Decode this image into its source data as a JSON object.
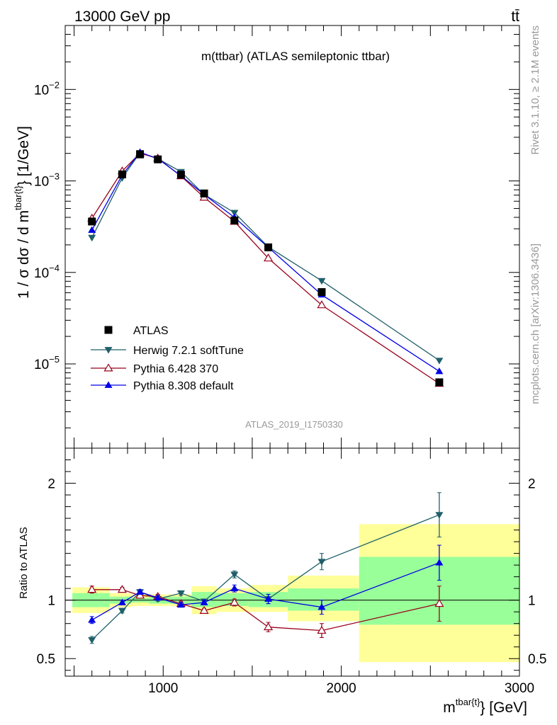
{
  "header": {
    "left": "13000 GeV pp",
    "right": "tt̄"
  },
  "side": {
    "rivet": "Rivet 3.1.10, ≥ 2.1M events",
    "mcplots": "mcplots.cern.ch [arXiv:1306.3436]"
  },
  "chart_data": [
    {
      "type": "scatter",
      "title": "m(ttbar) (ATLAS semileptonic ttbar)",
      "watermark": "ATLAS_2019_I1750330",
      "ylabel_main": "1 / σ dσ / d m",
      "ylabel_sup": "tbar{t}",
      "ylabel_tail": "} [1/GeV]",
      "yscale": "log",
      "ylim": [
        1.2e-06,
        0.05
      ],
      "xlim": [
        450,
        3000
      ],
      "y_ticks": [
        {
          "value": 0.01,
          "base": "10",
          "exp": "−2"
        },
        {
          "value": 0.001,
          "base": "10",
          "exp": "−3"
        },
        {
          "value": 0.0001,
          "base": "10",
          "exp": "−4"
        },
        {
          "value": 1e-05,
          "base": "10",
          "exp": "−5"
        }
      ],
      "legend_position": "bottom-left",
      "legend": [
        "ATLAS",
        "Herwig 7.2.1 softTune",
        "Pythia 6.428 370",
        "Pythia 8.308 default"
      ],
      "x": [
        600,
        770,
        870,
        970,
        1100,
        1230,
        1400,
        1590,
        1890,
        2550
      ],
      "series": [
        {
          "name": "ATLAS",
          "color": "#000000",
          "marker": "square",
          "values": [
            0.00036,
            0.00118,
            0.00195,
            0.00172,
            0.00117,
            0.00073,
            0.00037,
            0.000188,
            6.1e-05,
            6.3e-06
          ]
        },
        {
          "name": "Herwig 7.2.1 softTune",
          "color": "#1f5f6a",
          "marker": "triangle-down",
          "values": [
            0.00024,
            0.00108,
            0.00203,
            0.00175,
            0.00126,
            0.00071,
            0.00045,
            0.00019,
            8.1e-05,
            1.09e-05
          ]
        },
        {
          "name": "Pythia 6.428 370",
          "color": "#99001a",
          "marker": "triangle-open",
          "values": [
            0.00039,
            0.00128,
            0.00201,
            0.00177,
            0.00113,
            0.00066,
            0.00036,
            0.000143,
            4.4e-05,
            6.1e-06
          ]
        },
        {
          "name": "Pythia 8.308 default",
          "color": "#0000e6",
          "marker": "triangle-up",
          "values": [
            0.00029,
            0.00116,
            0.00206,
            0.00175,
            0.00114,
            0.00071,
            0.0004,
            0.000188,
            5.7e-05,
            8.3e-06
          ]
        }
      ]
    },
    {
      "type": "scatter",
      "ylabel": "Ratio to ATLAS",
      "xlabel_main": "m",
      "xlabel_sup": "tbar{t}",
      "xlabel_tail": "} [GeV]",
      "ylim": [
        0.35,
        2.3
      ],
      "xlim": [
        450,
        3000
      ],
      "y_ticks": [
        "0.5",
        "1",
        "2"
      ],
      "x_ticks": [
        "1000",
        "2000",
        "3000"
      ],
      "bands": [
        {
          "x0": 490,
          "x1": 700,
          "stat_lo": 0.94,
          "stat_hi": 1.06,
          "tot_lo": 0.89,
          "tot_hi": 1.11
        },
        {
          "x0": 700,
          "x1": 820,
          "stat_lo": 0.97,
          "stat_hi": 1.03,
          "tot_lo": 0.94,
          "tot_hi": 1.06
        },
        {
          "x0": 820,
          "x1": 920,
          "stat_lo": 0.98,
          "stat_hi": 1.02,
          "tot_lo": 0.95,
          "tot_hi": 1.05
        },
        {
          "x0": 920,
          "x1": 1030,
          "stat_lo": 0.97,
          "stat_hi": 1.03,
          "tot_lo": 0.95,
          "tot_hi": 1.05
        },
        {
          "x0": 1030,
          "x1": 1160,
          "stat_lo": 0.97,
          "stat_hi": 1.03,
          "tot_lo": 0.95,
          "tot_hi": 1.05
        },
        {
          "x0": 1160,
          "x1": 1300,
          "stat_lo": 0.94,
          "stat_hi": 1.07,
          "tot_lo": 0.88,
          "tot_hi": 1.12
        },
        {
          "x0": 1300,
          "x1": 1480,
          "stat_lo": 0.95,
          "stat_hi": 1.06,
          "tot_lo": 0.9,
          "tot_hi": 1.1
        },
        {
          "x0": 1480,
          "x1": 1700,
          "stat_lo": 0.94,
          "stat_hi": 1.07,
          "tot_lo": 0.9,
          "tot_hi": 1.13
        },
        {
          "x0": 1700,
          "x1": 2100,
          "stat_lo": 0.91,
          "stat_hi": 1.1,
          "tot_lo": 0.82,
          "tot_hi": 1.21
        },
        {
          "x0": 2100,
          "x1": 3000,
          "stat_lo": 0.79,
          "stat_hi": 1.37,
          "tot_lo": 0.47,
          "tot_hi": 1.65
        }
      ],
      "series": [
        {
          "name": "Herwig 7.2.1 softTune",
          "color": "#1f5f6a",
          "marker": "triangle-down",
          "values": [
            0.66,
            0.91,
            1.07,
            1.01,
            1.06,
            0.99,
            1.22,
            1.01,
            1.33,
            1.73
          ],
          "errors": [
            0.03,
            0.02,
            0.02,
            0.02,
            0.02,
            0.02,
            0.03,
            0.04,
            0.07,
            0.19
          ]
        },
        {
          "name": "Pythia 6.428 370",
          "color": "#99001a",
          "marker": "triangle-open",
          "values": [
            1.09,
            1.09,
            1.04,
            1.03,
            0.97,
            0.91,
            0.98,
            0.77,
            0.74,
            0.97
          ],
          "errors": [
            0.03,
            0.02,
            0.02,
            0.02,
            0.02,
            0.02,
            0.03,
            0.04,
            0.06,
            0.15
          ]
        },
        {
          "name": "Pythia 8.308 default",
          "color": "#0000e6",
          "marker": "triangle-up",
          "values": [
            0.83,
            0.98,
            1.07,
            1.02,
            0.96,
            0.98,
            1.1,
            1.01,
            0.94,
            1.32
          ],
          "errors": [
            0.03,
            0.02,
            0.02,
            0.02,
            0.02,
            0.02,
            0.03,
            0.04,
            0.06,
            0.15
          ]
        }
      ]
    }
  ]
}
